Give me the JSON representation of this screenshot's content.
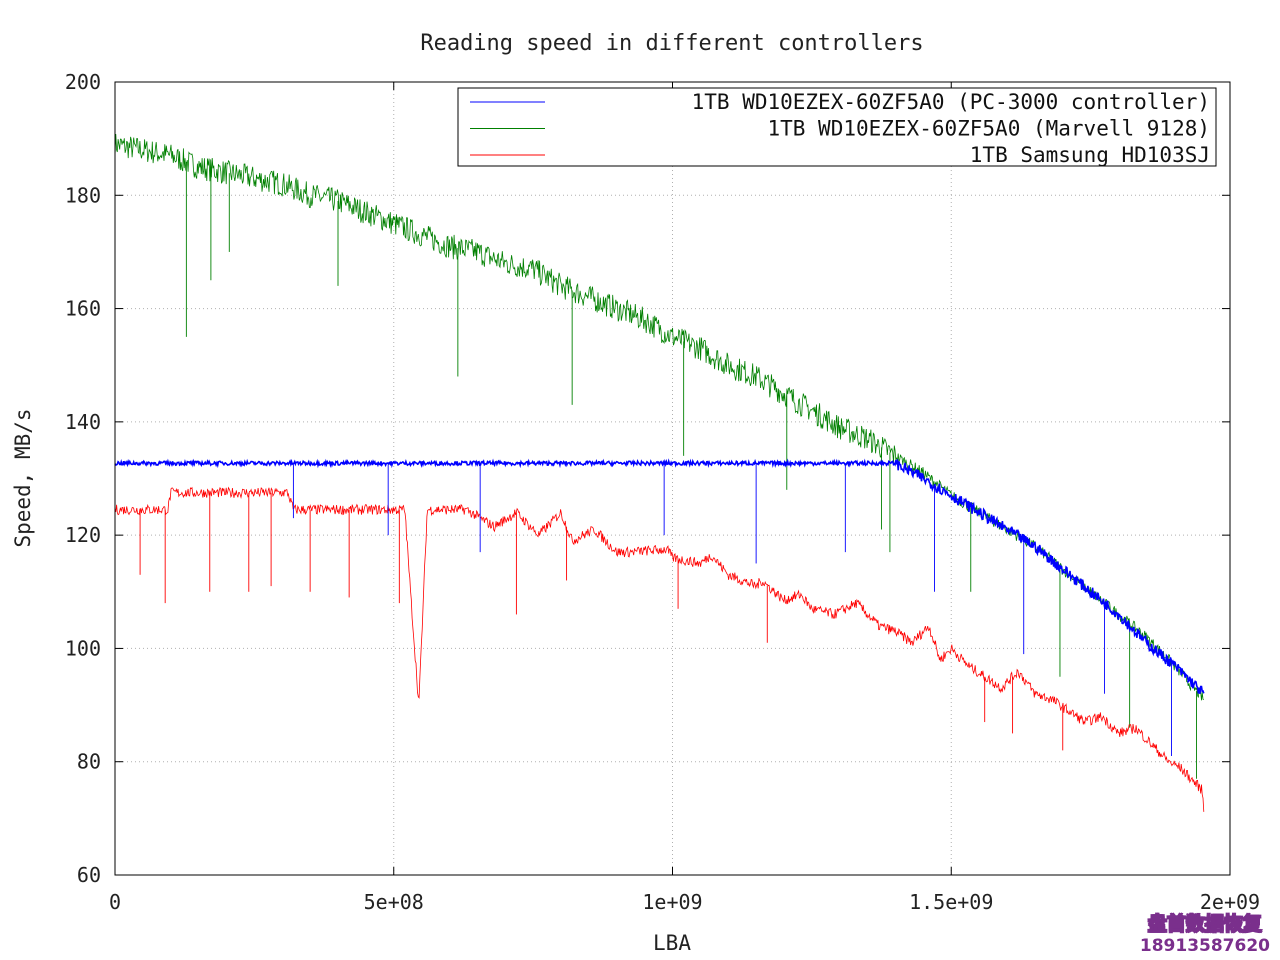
{
  "chart_data": {
    "type": "line",
    "title": "Reading speed in different controllers",
    "xlabel": "LBA",
    "ylabel": "Speed, MB/s",
    "xlim": [
      0,
      2000000000
    ],
    "ylim": [
      60,
      200
    ],
    "xticks": [
      {
        "value": 0,
        "label": "0"
      },
      {
        "value": 500000000,
        "label": "5e+08"
      },
      {
        "value": 1000000000,
        "label": "1e+09"
      },
      {
        "value": 1500000000,
        "label": "1.5e+09"
      },
      {
        "value": 2000000000,
        "label": "2e+09"
      }
    ],
    "yticks": [
      {
        "value": 60,
        "label": "60"
      },
      {
        "value": 80,
        "label": "80"
      },
      {
        "value": 100,
        "label": "100"
      },
      {
        "value": 120,
        "label": "120"
      },
      {
        "value": 140,
        "label": "140"
      },
      {
        "value": 160,
        "label": "160"
      },
      {
        "value": 180,
        "label": "180"
      },
      {
        "value": 200,
        "label": "200"
      }
    ],
    "grid": true,
    "legend_position": "top-right",
    "series": [
      {
        "name": "1TB WD10EZEX-60ZF5A0 (PC-3000 controller)",
        "color": "#0000ff",
        "x": [
          0,
          100000000,
          200000000,
          300000000,
          400000000,
          500000000,
          600000000,
          700000000,
          800000000,
          900000000,
          1000000000,
          1100000000,
          1200000000,
          1300000000,
          1400000000,
          1450000000,
          1500000000,
          1550000000,
          1600000000,
          1650000000,
          1700000000,
          1750000000,
          1800000000,
          1850000000,
          1900000000,
          1953000000
        ],
        "y": [
          132.7,
          132.7,
          132.7,
          132.7,
          132.7,
          132.7,
          132.7,
          132.7,
          132.7,
          132.7,
          132.7,
          132.7,
          132.7,
          132.7,
          132.7,
          130,
          127,
          124,
          121,
          118,
          114,
          110,
          106,
          101,
          97,
          92
        ],
        "dips": [
          [
            320000000,
            123
          ],
          [
            490000000,
            120
          ],
          [
            655000000,
            117
          ],
          [
            985000000,
            120
          ],
          [
            1150000000,
            115
          ],
          [
            1310000000,
            117
          ],
          [
            1470000000,
            110
          ],
          [
            1630000000,
            99
          ],
          [
            1775000000,
            92
          ],
          [
            1895000000,
            81
          ]
        ]
      },
      {
        "name": "1TB WD10EZEX-60ZF5A0 (Marvell 9128)",
        "color": "#008000",
        "x": [
          0,
          50000000,
          100000000,
          150000000,
          200000000,
          250000000,
          300000000,
          350000000,
          400000000,
          450000000,
          500000000,
          550000000,
          600000000,
          650000000,
          700000000,
          750000000,
          800000000,
          850000000,
          900000000,
          950000000,
          1000000000,
          1050000000,
          1100000000,
          1150000000,
          1200000000,
          1250000000,
          1300000000,
          1350000000,
          1400000000,
          1450000000,
          1500000000,
          1550000000,
          1600000000,
          1650000000,
          1700000000,
          1750000000,
          1800000000,
          1850000000,
          1900000000,
          1953000000
        ],
        "y": [
          189,
          188,
          187,
          185,
          184,
          183,
          182,
          180,
          179,
          177,
          175,
          173,
          171,
          170,
          168,
          167,
          164,
          162,
          160,
          158,
          155,
          153,
          150,
          148,
          145,
          142,
          139,
          137,
          134,
          131,
          127,
          124,
          121,
          118,
          114,
          110,
          106,
          102,
          97,
          91
        ],
        "dips": [
          [
            128000000,
            155
          ],
          [
            172000000,
            165
          ],
          [
            205000000,
            170
          ],
          [
            400000000,
            164
          ],
          [
            615000000,
            148
          ],
          [
            820000000,
            143
          ],
          [
            1020000000,
            134
          ],
          [
            1205000000,
            128
          ],
          [
            1375000000,
            121
          ],
          [
            1390000000,
            117
          ],
          [
            1535000000,
            110
          ],
          [
            1695000000,
            95
          ],
          [
            1820000000,
            86
          ],
          [
            1940000000,
            77
          ]
        ]
      },
      {
        "name": "1TB Samsung HD103SJ",
        "color": "#ff0000",
        "x": [
          0,
          95000000,
          100000000,
          310000000,
          320000000,
          520000000,
          530000000,
          545000000,
          560000000,
          630000000,
          680000000,
          720000000,
          760000000,
          800000000,
          820000000,
          860000000,
          900000000,
          920000000,
          990000000,
          1000000000,
          1050000000,
          1070000000,
          1100000000,
          1150000000,
          1160000000,
          1200000000,
          1230000000,
          1250000000,
          1290000000,
          1330000000,
          1370000000,
          1400000000,
          1430000000,
          1460000000,
          1480000000,
          1500000000,
          1530000000,
          1560000000,
          1590000000,
          1620000000,
          1650000000,
          1680000000,
          1710000000,
          1740000000,
          1770000000,
          1800000000,
          1830000000,
          1860000000,
          1890000000,
          1910000000,
          1930000000,
          1950000000,
          1953000000
        ],
        "y": [
          124.5,
          124.5,
          127.5,
          127.5,
          124.5,
          124.5,
          110,
          90,
          124.5,
          124.5,
          121.5,
          124,
          120,
          124,
          119,
          121,
          117,
          117,
          117.5,
          116,
          115,
          116.5,
          113,
          111,
          112,
          108.5,
          109.5,
          107,
          106,
          108,
          104,
          103,
          101,
          104,
          98,
          100,
          97,
          95,
          93,
          96,
          92,
          91,
          89,
          87,
          88,
          85,
          86,
          83,
          80,
          79,
          77,
          75,
          71.5
        ],
        "dips": [
          [
            45000000,
            113
          ],
          [
            90000000,
            108
          ],
          [
            170000000,
            110
          ],
          [
            240000000,
            110
          ],
          [
            280000000,
            111
          ],
          [
            350000000,
            110
          ],
          [
            420000000,
            109
          ],
          [
            510000000,
            108
          ],
          [
            720000000,
            106
          ],
          [
            810000000,
            112
          ],
          [
            1010000000,
            107
          ],
          [
            1170000000,
            101
          ],
          [
            1560000000,
            87
          ],
          [
            1610000000,
            85
          ],
          [
            1700000000,
            82
          ]
        ]
      }
    ]
  },
  "watermark": {
    "line1": "盘首数据恢复",
    "line2": "18913587620"
  }
}
